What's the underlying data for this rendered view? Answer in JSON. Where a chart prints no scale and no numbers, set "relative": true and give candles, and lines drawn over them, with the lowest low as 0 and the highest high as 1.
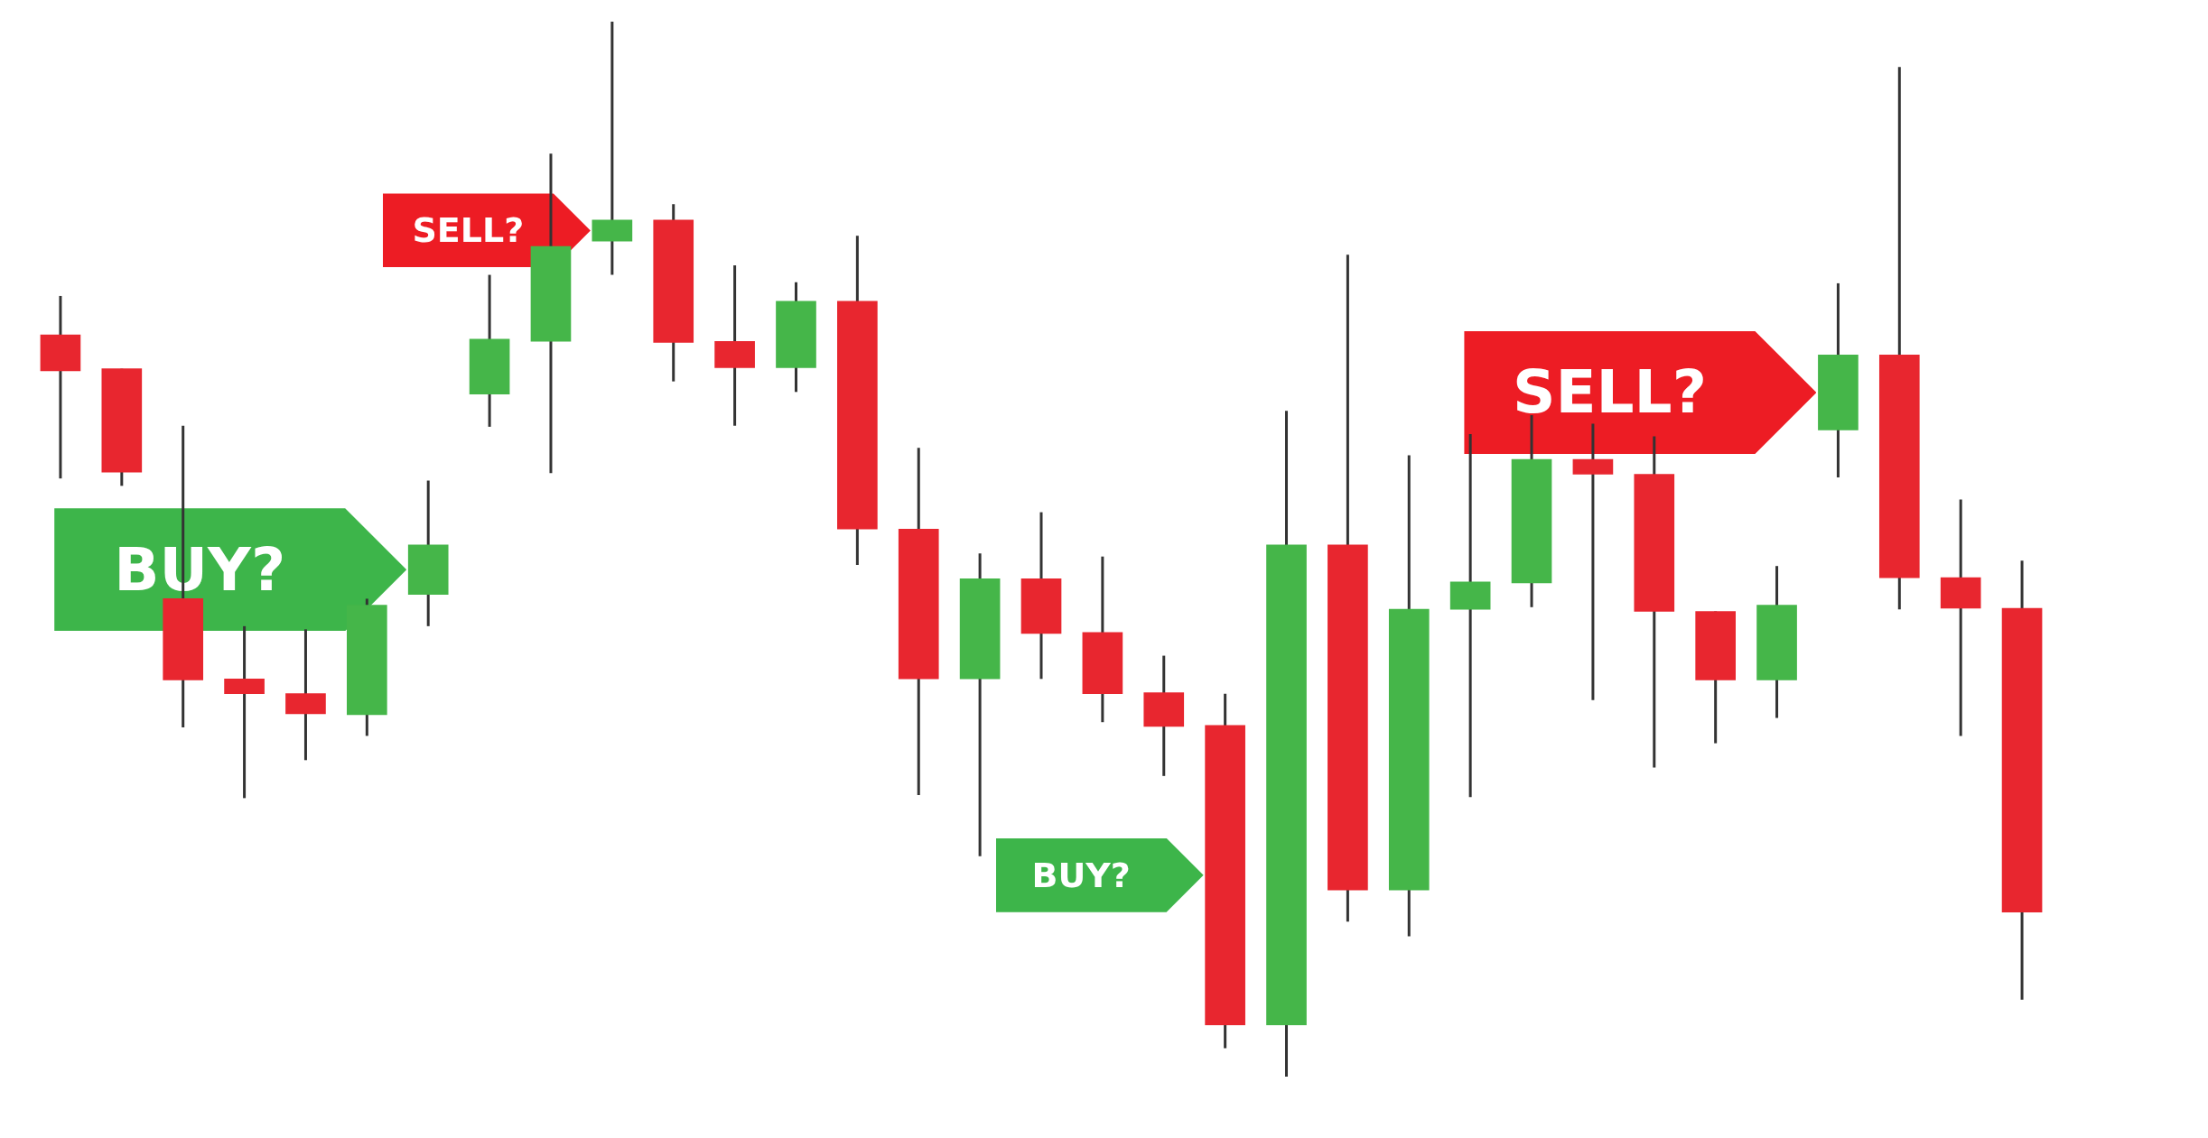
{
  "chart_data": {
    "type": "candlestick",
    "relative": true,
    "categories": [
      null,
      null,
      null,
      null,
      null,
      null,
      null,
      null,
      null,
      null,
      null,
      null,
      null,
      null,
      null,
      null,
      null,
      null,
      null,
      null,
      null,
      null,
      null,
      null,
      null,
      null,
      null,
      null,
      null,
      null,
      null,
      null,
      null
    ],
    "ohlc": [
      [
        0.703,
        0.74,
        0.567,
        0.669
      ],
      [
        0.671,
        0.671,
        0.56,
        0.573
      ],
      [
        0.453,
        0.617,
        0.331,
        0.376
      ],
      [
        0.377,
        0.427,
        0.264,
        0.363
      ],
      [
        0.363,
        0.424,
        0.3,
        0.344
      ],
      [
        0.343,
        0.453,
        0.323,
        0.447
      ],
      [
        0.457,
        0.565,
        0.427,
        0.504
      ],
      [
        0.647,
        0.76,
        0.616,
        0.699
      ],
      [
        0.697,
        0.875,
        0.572,
        0.787
      ],
      [
        0.792,
        1,
        0.76,
        0.812
      ],
      [
        0.812,
        0.827,
        0.659,
        0.696
      ],
      [
        0.697,
        0.769,
        0.617,
        0.672
      ],
      [
        0.672,
        0.753,
        0.649,
        0.735
      ],
      [
        0.735,
        0.797,
        0.485,
        0.519
      ],
      [
        0.519,
        0.596,
        0.267,
        0.377
      ],
      [
        0.377,
        0.496,
        0.209,
        0.472
      ],
      [
        0.472,
        0.535,
        0.377,
        0.42
      ],
      [
        0.421,
        0.493,
        0.336,
        0.363
      ],
      [
        0.364,
        0.399,
        0.285,
        0.332
      ],
      [
        0.333,
        0.363,
        0.027,
        0.049
      ],
      [
        0.049,
        0.631,
        0,
        0.504
      ],
      [
        0.504,
        0.779,
        0.147,
        0.177
      ],
      [
        0.177,
        0.589,
        0.133,
        0.443
      ],
      [
        0.443,
        0.609,
        0.265,
        0.469
      ],
      [
        0.468,
        0.627,
        0.445,
        0.585
      ],
      [
        0.585,
        0.619,
        0.357,
        0.571
      ],
      [
        0.571,
        0.607,
        0.293,
        0.441
      ],
      [
        0.441,
        0.441,
        0.316,
        0.376
      ],
      [
        0.376,
        0.484,
        0.34,
        0.447
      ],
      [
        0.613,
        0.752,
        0.568,
        0.684
      ],
      [
        0.684,
        0.957,
        0.443,
        0.473
      ],
      [
        0.473,
        0.547,
        0.323,
        0.444
      ],
      [
        0.444,
        0.489,
        0.073,
        0.156
      ]
    ],
    "colors": [
      "#e8262f",
      "#e8262f",
      "#e8262f",
      "#e8262f",
      "#e8262f",
      "#45b649",
      "#45b649",
      "#45b649",
      "#45b649",
      "#45b649",
      "#e8262f",
      "#e8262f",
      "#45b649",
      "#e8262f",
      "#e8262f",
      "#45b649",
      "#e8262f",
      "#e8262f",
      "#e8262f",
      "#e8262f",
      "#45b649",
      "#e8262f",
      "#45b649",
      "#45b649",
      "#45b649",
      "#e8262f",
      "#e8262f",
      "#e8262f",
      "#45b649",
      "#45b649",
      "#e8262f",
      "#e8262f",
      "#e8262f"
    ],
    "annotations": [
      "SELL?",
      "BUY?",
      "BUY?",
      "SELL?"
    ]
  }
}
